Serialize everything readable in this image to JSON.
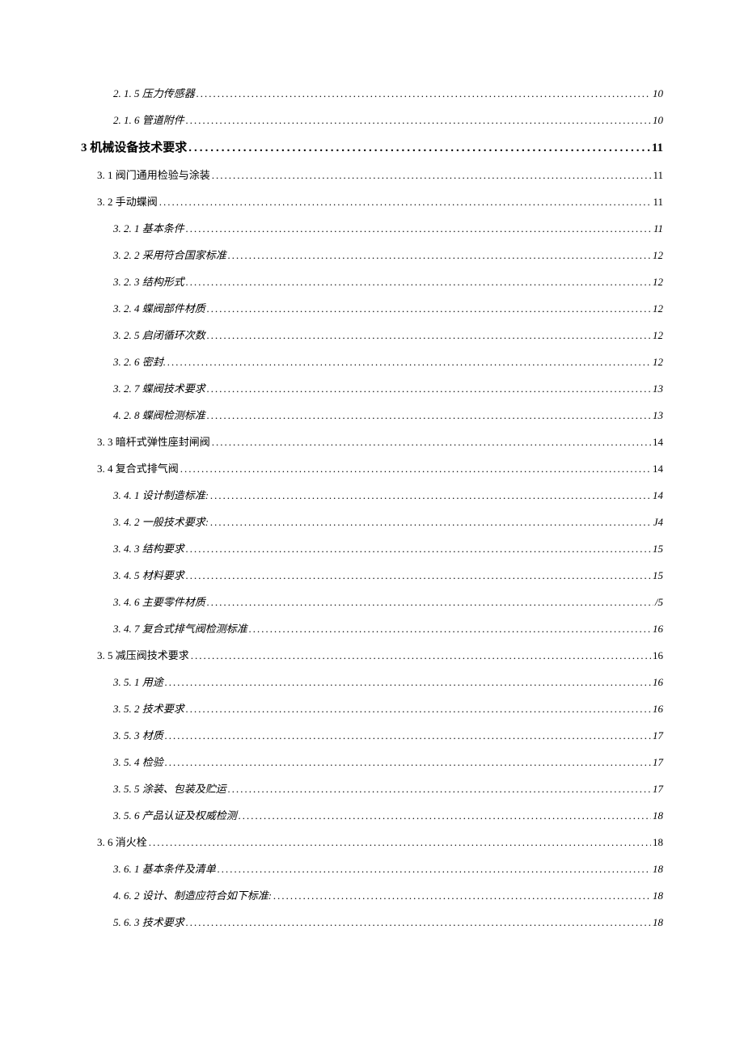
{
  "toc": [
    {
      "level": 3,
      "label": "2. 1.  5 压力传感器",
      "page": "10"
    },
    {
      "level": 3,
      "label": "2. 1. 6 管道附件",
      "page": "10"
    },
    {
      "level": 1,
      "label": "3 机械设备技术要求 ",
      "page": " 11"
    },
    {
      "level": 2,
      "label": "3. 1 阀门通用检验与涂装",
      "page": "11"
    },
    {
      "level": 2,
      "label": "3. 2 手动蝶阀",
      "page": "11"
    },
    {
      "level": 3,
      "label": "3. 2. 1 基本条件",
      "page": "11"
    },
    {
      "level": 3,
      "label": "3. 2. 2 采用符合国家标准",
      "page": "12"
    },
    {
      "level": 3,
      "label": "3. 2. 3 结构形式",
      "page": "12"
    },
    {
      "level": 3,
      "label": "3. 2. 4 蝶阀部件材质",
      "page": "12"
    },
    {
      "level": 3,
      "label": "3. 2. 5 启闭循环次数",
      "page": "12"
    },
    {
      "level": 3,
      "label": "3.  2. 6 密封. ",
      "page": "12"
    },
    {
      "level": 3,
      "label": "3.  2. 7 蝶阀技术要求 ",
      "page": "13"
    },
    {
      "level": 3,
      "label": "4.  2. 8 蝶阀检测标准 ",
      "page": "13"
    },
    {
      "level": 2,
      "label": "3. 3 暗杆式弹性座封闸阀",
      "page": "14"
    },
    {
      "level": 2,
      "label": "3. 4 复合式排气阀",
      "page": "14"
    },
    {
      "level": 3,
      "label": "3. 4. 1 设计制造标准:",
      "page": "14"
    },
    {
      "level": 3,
      "label": "3. 4. 2 一般技术要求:",
      "page": "J4"
    },
    {
      "level": 3,
      "label": "3. 4. 3 结构要求",
      "page": "15"
    },
    {
      "level": 3,
      "label": "3. 4. 5 材料要求",
      "page": "15"
    },
    {
      "level": 3,
      "label": "3. 4. 6 主要零件材质",
      "page": "/5"
    },
    {
      "level": 3,
      "label": "3. 4. 7 复合式排气阀检测标准",
      "page": "16"
    },
    {
      "level": 2,
      "label": "3. 5 减压阀技术要求",
      "page": "16"
    },
    {
      "level": 3,
      "label": "3. 5. 1 用途",
      "page": "16"
    },
    {
      "level": 3,
      "label": "3. 5. 2 技术要求",
      "page": "16"
    },
    {
      "level": 3,
      "label": "3. 5. 3 材质",
      "page": "17"
    },
    {
      "level": 3,
      "label": "3. 5. 4 检验",
      "page": "17"
    },
    {
      "level": 3,
      "label": "3. 5. 5 涂装、包装及贮运",
      "page": "17"
    },
    {
      "level": 3,
      "label": "3. 5. 6 产品认证及权威检测",
      "page": "18"
    },
    {
      "level": 2,
      "label": "3. 6  消火栓 ",
      "page": "18"
    },
    {
      "level": 3,
      "label": "3.  6. 1 基本条件及清单 ",
      "page": "18"
    },
    {
      "level": 3,
      "label": "4.  6. 2 设计、制造应符合如下标准:  ",
      "page": "18"
    },
    {
      "level": 3,
      "label": "5.  6. 3 技术要求 ",
      "page": "18"
    }
  ]
}
